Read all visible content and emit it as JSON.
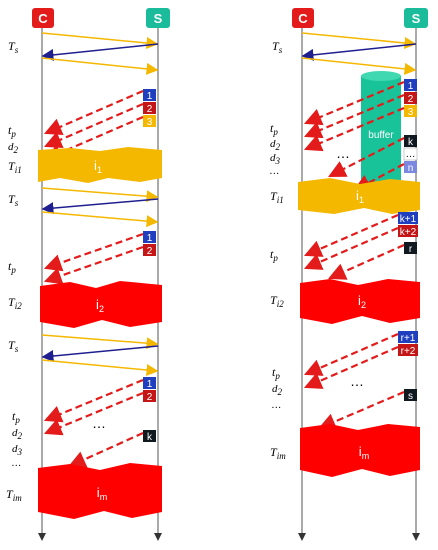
{
  "nodes": {
    "client": "C",
    "server": "S"
  },
  "labels": {
    "ts": "T",
    "ts_sub": "s",
    "tp": "t",
    "tp_sub": "p",
    "d2": "d",
    "d2_sub": "2",
    "d3": "d",
    "d3_sub": "3",
    "ellipsis_v": "…",
    "ti1": "T",
    "ti1_sub": "i1",
    "ti2": "T",
    "ti2_sub": "i2",
    "tim": "T",
    "tim_sub": "im"
  },
  "packets": {
    "p1": "1",
    "p2": "2",
    "p3": "3",
    "pk": "k",
    "pn": "n",
    "pdots": "…",
    "pk1": "k+1",
    "pk2": "k+2",
    "pr": "r",
    "pr1": "r+1",
    "pr2": "r+2",
    "ps": "s"
  },
  "blobs": {
    "i1": "i",
    "i1_sub": "1",
    "i2": "i",
    "i2_sub": "2",
    "im": "i",
    "im_sub": "m"
  },
  "buffer": "buffer",
  "dots": "…",
  "colors": {
    "node": "#e41b1b",
    "server_node": "#1abc9c",
    "yellow_arrow": "#f5b800",
    "blue_arrow": "#1f1f8f",
    "red_dash": "#e41b1b",
    "blob_yellow": "#f5b800",
    "blob_red": "#ff0000",
    "buffer": "#19c39a",
    "pkt_blue": "#1f3fbf",
    "pkt_red": "#c41616",
    "pkt_yellow": "#f5b800",
    "pkt_black": "#101820",
    "pkt_purple": "#7a88e0"
  }
}
